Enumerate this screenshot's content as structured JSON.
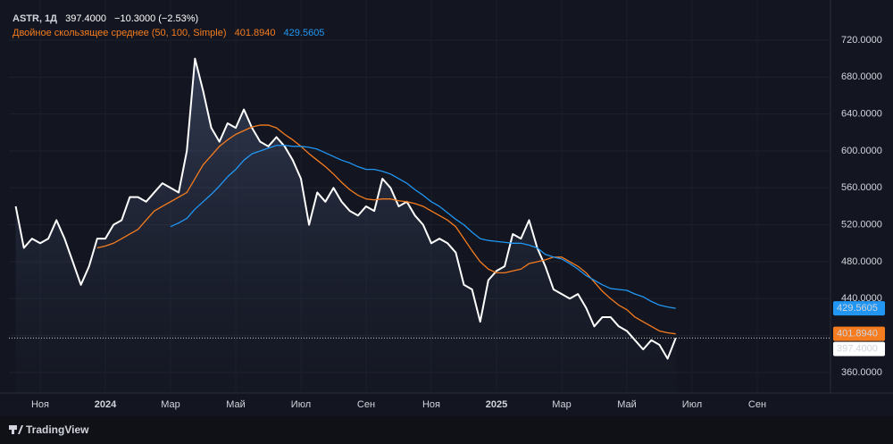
{
  "chart_data": {
    "type": "line",
    "symbol": "ASTR, 1Д",
    "change": "−10.3000 (−2.53%)",
    "indicator": "Двойное скользящее среднее (50, 100, Simple)",
    "branding": "TradingView",
    "categories": [
      null,
      null,
      null,
      "Ноя",
      null,
      null,
      null,
      null,
      null,
      null,
      null,
      "2024",
      null,
      null,
      null,
      null,
      null,
      null,
      null,
      "Мар",
      null,
      null,
      null,
      null,
      null,
      null,
      null,
      "Май",
      null,
      null,
      null,
      null,
      null,
      null,
      null,
      "Июл",
      null,
      null,
      null,
      null,
      null,
      null,
      null,
      "Сен",
      null,
      null,
      null,
      null,
      null,
      null,
      null,
      "Ноя",
      null,
      null,
      null,
      null,
      null,
      null,
      null,
      "2025",
      null,
      null,
      null,
      null,
      null,
      null,
      null,
      "Мар",
      null,
      null,
      null,
      null,
      null,
      null,
      null,
      "Май",
      null,
      null,
      null,
      null,
      null,
      null,
      null,
      "Июл",
      null,
      null,
      null,
      null,
      null,
      null,
      null,
      "Сен",
      null,
      null,
      null,
      null,
      null,
      null,
      null,
      null,
      null
    ],
    "series": [
      {
        "color": "#ffffff",
        "area": true,
        "price_line": true,
        "values": [
          540,
          495,
          505,
          500,
          505,
          525,
          505,
          480,
          455,
          475,
          505,
          505,
          520,
          525,
          550,
          550,
          545,
          555,
          565,
          560,
          555,
          600,
          700,
          665,
          625,
          610,
          630,
          625,
          645,
          625,
          610,
          605,
          615,
          605,
          590,
          570,
          520,
          555,
          545,
          560,
          545,
          535,
          530,
          540,
          535,
          570,
          560,
          540,
          545,
          530,
          520,
          500,
          505,
          500,
          490,
          455,
          450,
          415,
          460,
          470,
          475,
          510,
          505,
          525,
          495,
          475,
          450,
          445,
          440,
          445,
          430,
          410,
          420,
          420,
          410,
          405,
          395,
          385,
          395,
          390,
          375,
          397.4,
          null,
          null,
          null,
          null,
          null,
          null,
          null,
          null,
          null,
          null,
          null,
          null,
          null,
          null,
          null,
          null,
          null,
          null,
          null
        ],
        "value_labels": [
          null,
          null,
          null,
          null,
          null,
          null,
          null,
          null,
          null,
          null,
          null,
          null,
          null,
          null,
          null,
          null,
          null,
          null,
          null,
          null,
          null,
          null,
          null,
          null,
          null,
          null,
          null,
          null,
          null,
          null,
          null,
          null,
          null,
          null,
          null,
          null,
          null,
          null,
          null,
          null,
          null,
          null,
          null,
          null,
          null,
          null,
          null,
          null,
          null,
          null,
          null,
          null,
          null,
          null,
          null,
          null,
          null,
          null,
          null,
          null,
          null,
          null,
          null,
          null,
          null,
          null,
          null,
          null,
          null,
          null,
          null,
          null,
          null,
          null,
          null,
          null,
          null,
          null,
          null,
          null,
          null,
          "397.4000",
          null,
          null,
          null,
          null,
          null,
          null,
          null,
          null,
          null,
          null,
          null,
          null,
          null,
          null,
          null,
          null,
          null,
          null,
          null
        ]
      },
      {
        "color": "#f57c1f",
        "values": [
          null,
          null,
          null,
          null,
          null,
          null,
          null,
          null,
          null,
          null,
          495,
          497,
          500,
          505,
          510,
          515,
          525,
          535,
          540,
          545,
          550,
          555,
          570,
          585,
          595,
          605,
          612,
          618,
          622,
          626,
          628,
          628,
          625,
          618,
          612,
          605,
          597,
          590,
          583,
          575,
          566,
          558,
          552,
          548,
          547,
          548,
          548,
          546,
          545,
          543,
          540,
          535,
          530,
          525,
          518,
          505,
          492,
          480,
          472,
          468,
          468,
          470,
          472,
          478,
          480,
          482,
          485,
          485,
          480,
          475,
          468,
          458,
          448,
          440,
          433,
          428,
          420,
          415,
          410,
          405,
          403,
          401.894,
          null,
          null,
          null,
          null,
          null,
          null,
          null,
          null,
          null,
          null,
          null,
          null,
          null,
          null,
          null,
          null,
          null,
          null,
          null
        ],
        "value_labels": [
          null,
          null,
          null,
          null,
          null,
          null,
          null,
          null,
          null,
          null,
          null,
          null,
          null,
          null,
          null,
          null,
          null,
          null,
          null,
          null,
          null,
          null,
          null,
          null,
          null,
          null,
          null,
          null,
          null,
          null,
          null,
          null,
          null,
          null,
          null,
          null,
          null,
          null,
          null,
          null,
          null,
          null,
          null,
          null,
          null,
          null,
          null,
          null,
          null,
          null,
          null,
          null,
          null,
          null,
          null,
          null,
          null,
          null,
          null,
          null,
          null,
          null,
          null,
          null,
          null,
          null,
          null,
          null,
          null,
          null,
          null,
          null,
          null,
          null,
          null,
          null,
          null,
          null,
          null,
          null,
          null,
          "401.8940",
          null,
          null,
          null,
          null,
          null,
          null,
          null,
          null,
          null,
          null,
          null,
          null,
          null,
          null,
          null,
          null,
          null,
          null,
          null
        ]
      },
      {
        "color": "#2196f3",
        "values": [
          null,
          null,
          null,
          null,
          null,
          null,
          null,
          null,
          null,
          null,
          null,
          null,
          null,
          null,
          null,
          null,
          null,
          null,
          null,
          518,
          522,
          527,
          537,
          545,
          553,
          562,
          572,
          580,
          590,
          597,
          600,
          603,
          606,
          606,
          605,
          605,
          604,
          602,
          598,
          594,
          590,
          587,
          583,
          580,
          580,
          578,
          575,
          570,
          565,
          558,
          552,
          545,
          540,
          533,
          526,
          520,
          512,
          505,
          503,
          502,
          501,
          500,
          500,
          498,
          495,
          488,
          485,
          483,
          478,
          472,
          465,
          460,
          455,
          451,
          450,
          449,
          445,
          442,
          437,
          433,
          431,
          429.5605,
          null,
          null,
          null,
          null,
          null,
          null,
          null,
          null,
          null,
          null,
          null,
          null,
          null,
          null,
          null,
          null,
          null,
          null,
          null
        ],
        "value_labels": [
          null,
          null,
          null,
          null,
          null,
          null,
          null,
          null,
          null,
          null,
          null,
          null,
          null,
          null,
          null,
          null,
          null,
          null,
          null,
          null,
          null,
          null,
          null,
          null,
          null,
          null,
          null,
          null,
          null,
          null,
          null,
          null,
          null,
          null,
          null,
          null,
          null,
          null,
          null,
          null,
          null,
          null,
          null,
          null,
          null,
          null,
          null,
          null,
          null,
          null,
          null,
          null,
          null,
          null,
          null,
          null,
          null,
          null,
          null,
          null,
          null,
          null,
          null,
          null,
          null,
          null,
          null,
          null,
          null,
          null,
          null,
          null,
          null,
          null,
          null,
          null,
          null,
          null,
          null,
          null,
          null,
          "429.5605",
          null,
          null,
          null,
          null,
          null,
          null,
          null,
          null,
          null,
          null,
          null,
          null,
          null,
          null,
          null,
          null,
          null,
          null,
          null
        ]
      }
    ],
    "ylim": [
      337.7,
      758.7
    ],
    "yticks": [
      {
        "value": 360,
        "label": "360.0000"
      },
      {
        "value": 400,
        "label": "400.0000"
      },
      {
        "value": 440,
        "label": "440.0000"
      },
      {
        "value": 480,
        "label": "480.0000"
      },
      {
        "value": 520,
        "label": "520.0000"
      },
      {
        "value": 560,
        "label": "560.0000"
      },
      {
        "value": 600,
        "label": "600.0000"
      },
      {
        "value": 640,
        "label": "640.0000"
      },
      {
        "value": 680,
        "label": "680.0000"
      },
      {
        "value": 720,
        "label": "720.0000"
      }
    ],
    "grid": true
  }
}
